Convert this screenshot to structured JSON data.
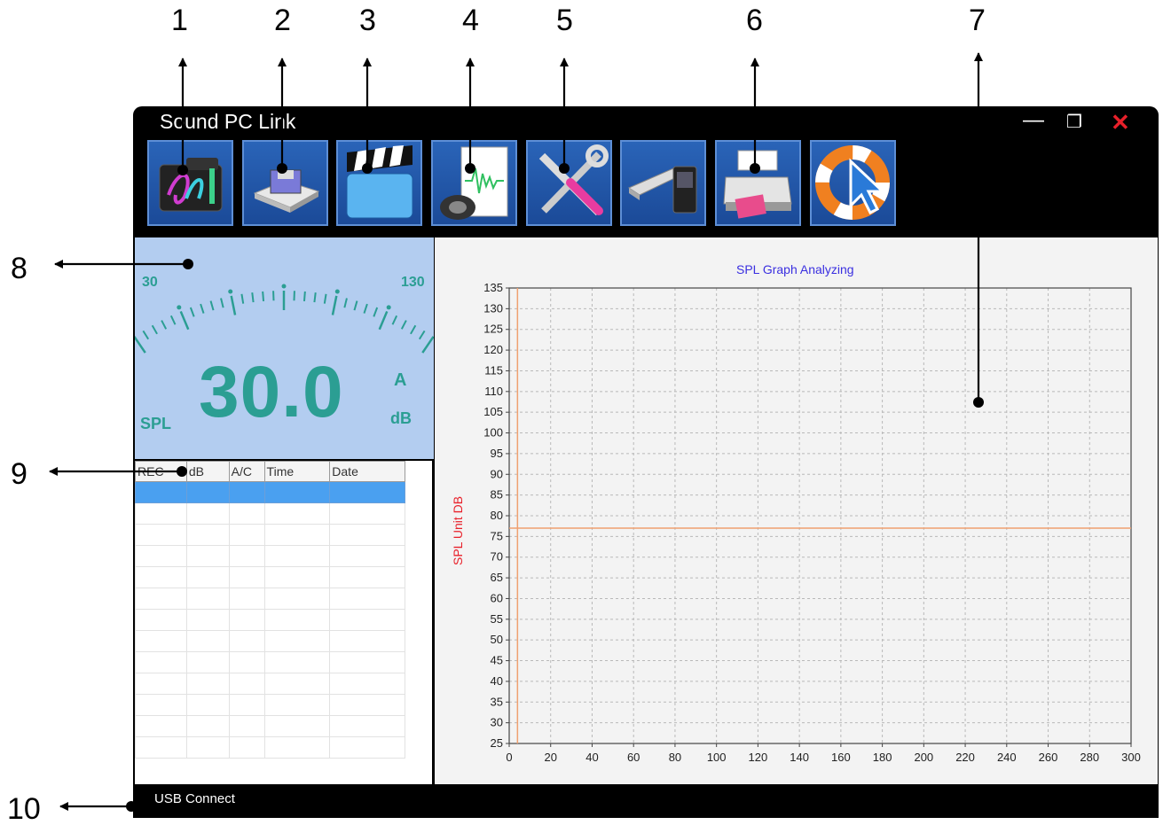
{
  "callouts": [
    "1",
    "2",
    "3",
    "4",
    "5",
    "6",
    "7",
    "8",
    "9",
    "10"
  ],
  "window": {
    "title": "Sound PC Link",
    "minimize": "—",
    "maximize": "❐",
    "close": "✕"
  },
  "toolbar": {
    "buttons": [
      {
        "icon": "data-folder-icon"
      },
      {
        "icon": "save-disk-icon"
      },
      {
        "icon": "clapperboard-icon"
      },
      {
        "icon": "speaker-document-icon"
      },
      {
        "icon": "tools-icon"
      },
      {
        "icon": "usb-device-icon"
      },
      {
        "icon": "printer-icon"
      },
      {
        "icon": "help-lifebuoy-icon"
      }
    ]
  },
  "meter": {
    "scale_min": "30",
    "scale_max": "130",
    "value": "30.0",
    "label": "SPL",
    "weighting": "A",
    "unit": "dB",
    "accent_color": "#2b9e93"
  },
  "records": {
    "columns": [
      "REC",
      "dB",
      "A/C",
      "Time",
      "Date"
    ],
    "row_count": 13,
    "selected_row": 0
  },
  "chart_data": {
    "type": "line",
    "title": "SPL Graph Analyzing",
    "xlabel": "",
    "ylabel": "SPL Unit DB",
    "xlim": [
      0,
      300
    ],
    "ylim": [
      25,
      135
    ],
    "x_ticks": [
      0,
      20,
      40,
      60,
      80,
      100,
      120,
      140,
      160,
      180,
      200,
      220,
      240,
      260,
      280,
      300
    ],
    "y_ticks": [
      25,
      30,
      35,
      40,
      45,
      50,
      55,
      60,
      65,
      70,
      75,
      80,
      85,
      90,
      95,
      100,
      105,
      110,
      115,
      120,
      125,
      130,
      135
    ],
    "grid": true,
    "reference_lines": {
      "horizontal_y": 77,
      "vertical_x": 4
    },
    "line_color": "#f0a070",
    "series": []
  },
  "status": {
    "text": "USB Connect"
  }
}
